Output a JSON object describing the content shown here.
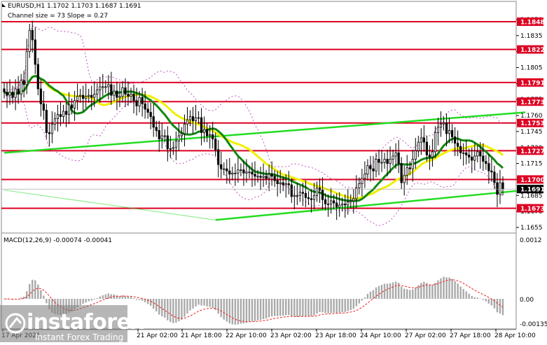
{
  "header": {
    "symbol_line": "EURUSD,H1  1.1702 1.1703 1.1687 1.1691",
    "channel_line": "Channel size = 73 Slope = 0.27"
  },
  "macd": {
    "label": "MACD(12,26,9) -0.00074 -0.00041",
    "ticks": [
      "0.0012",
      "0.00",
      "-0.00135"
    ]
  },
  "brand": {
    "logo_text": "instaforex",
    "logo_sub": "Instant Forex Trading",
    "logo_icon": "instaforex-logo-icon"
  },
  "colors": {
    "candle": "#000000",
    "level_line": "#dd0022",
    "level_label_bg": "#dd0022",
    "channel": "#22dd22",
    "ma_green": "#118811",
    "ma_yellow": "#f0f000",
    "bollinger": "#bb55bb",
    "macd_hist": "#aaaaaa",
    "macd_signal": "#ee2222",
    "current_price_bg": "#000000"
  },
  "chart_data": {
    "type": "candlestick",
    "symbol": "EURUSD",
    "timeframe": "H1",
    "ohlc_last": {
      "open": 1.1702,
      "high": 1.1703,
      "low": 1.1687,
      "close": 1.1691
    },
    "current_price_label": "1.1691",
    "ylim": [
      1.1655,
      1.185
    ],
    "y_ticks": [
      "1.1850",
      "1.1835",
      "1.1820",
      "1.1805",
      "1.1790",
      "1.1775",
      "1.1760",
      "1.1745",
      "1.1730",
      "1.1715",
      "1.1700",
      "1.1685",
      "1.1670",
      "1.1655"
    ],
    "x_ticks": [
      "17 Apr 2021",
      "21 Apr 02:00",
      "21 Apr 18:00",
      "22 Apr 10:00",
      "23 Apr 02:00",
      "23 Apr 18:00",
      "24 Apr 10:00",
      "27 Apr 02:00",
      "27 Apr 18:00",
      "28 Apr 10:00"
    ],
    "levels": [
      {
        "label": "1.1848",
        "value": 1.1848
      },
      {
        "label": "1.1822",
        "value": 1.1822
      },
      {
        "label": "1.1791",
        "value": 1.1791
      },
      {
        "label": "1.1773",
        "value": 1.1773
      },
      {
        "label": "1.1753",
        "value": 1.1753
      },
      {
        "label": "1.1727",
        "value": 1.1727
      },
      {
        "label": "1.1700",
        "value": 1.17
      },
      {
        "label": "1.1673",
        "value": 1.1673
      }
    ],
    "channel_upper": [
      [
        0,
        1.1725
      ],
      [
        185,
        1.1763
      ]
    ],
    "channel_lower": [
      [
        75,
        1.1662
      ],
      [
        185,
        1.169
      ]
    ],
    "closes": [
      1.1782,
      1.1779,
      1.1782,
      1.1777,
      1.1785,
      1.178,
      1.1793,
      1.1789,
      1.182,
      1.184,
      1.1831,
      1.1808,
      1.1785,
      1.1771,
      1.1765,
      1.1744,
      1.1743,
      1.1752,
      1.1757,
      1.1761,
      1.1759,
      1.1764,
      1.1761,
      1.177,
      1.1767,
      1.1774,
      1.1778,
      1.1779,
      1.1776,
      1.1778,
      1.1779,
      1.1777,
      1.178,
      1.1784,
      1.1787,
      1.1787,
      1.1787,
      1.1789,
      1.1779,
      1.1783,
      1.1777,
      1.1778,
      1.1786,
      1.178,
      1.1778,
      1.178,
      1.1774,
      1.1769,
      1.1777,
      1.1771,
      1.1766,
      1.1763,
      1.1759,
      1.1749,
      1.1746,
      1.1738,
      1.1741,
      1.1741,
      1.1729,
      1.1729,
      1.173,
      1.1736,
      1.1741,
      1.1743,
      1.1752,
      1.1756,
      1.1759,
      1.1755,
      1.1758,
      1.1758,
      1.1744,
      1.1747,
      1.1741,
      1.1742,
      1.1738,
      1.1728,
      1.1714,
      1.171,
      1.171,
      1.1708,
      1.1705,
      1.1706,
      1.1706,
      1.1709,
      1.1709,
      1.1706,
      1.1707,
      1.1707,
      1.1705,
      1.1703,
      1.1703,
      1.1702,
      1.1703,
      1.1701,
      1.1705,
      1.1703,
      1.1699,
      1.1696,
      1.1697,
      1.1695,
      1.1696,
      1.1695,
      1.1684,
      1.1685,
      1.1685,
      1.1688,
      1.1687,
      1.1683,
      1.1682,
      1.1681,
      1.1685,
      1.1692,
      1.169,
      1.1681,
      1.1677,
      1.1677,
      1.168,
      1.1678,
      1.1674,
      1.1676,
      1.1677,
      1.1676,
      1.1679,
      1.168,
      1.1682,
      1.1692,
      1.1696,
      1.1701,
      1.1705,
      1.1713,
      1.171,
      1.1708,
      1.1719,
      1.1716,
      1.1716,
      1.1719,
      1.1715,
      1.1719,
      1.1722,
      1.1725,
      1.1715,
      1.1697,
      1.1704,
      1.1711,
      1.171,
      1.1719,
      1.1727,
      1.1735,
      1.1739,
      1.1735,
      1.1723,
      1.1721,
      1.1726,
      1.1744,
      1.1749,
      1.1752,
      1.1753,
      1.1743,
      1.1746,
      1.174,
      1.1734,
      1.1731,
      1.1725,
      1.1725,
      1.1723,
      1.1721,
      1.1718,
      1.1722,
      1.1726,
      1.1722,
      1.1717,
      1.1715,
      1.1708,
      1.1707,
      1.1697,
      1.1686,
      1.1697,
      1.1691
    ]
  }
}
